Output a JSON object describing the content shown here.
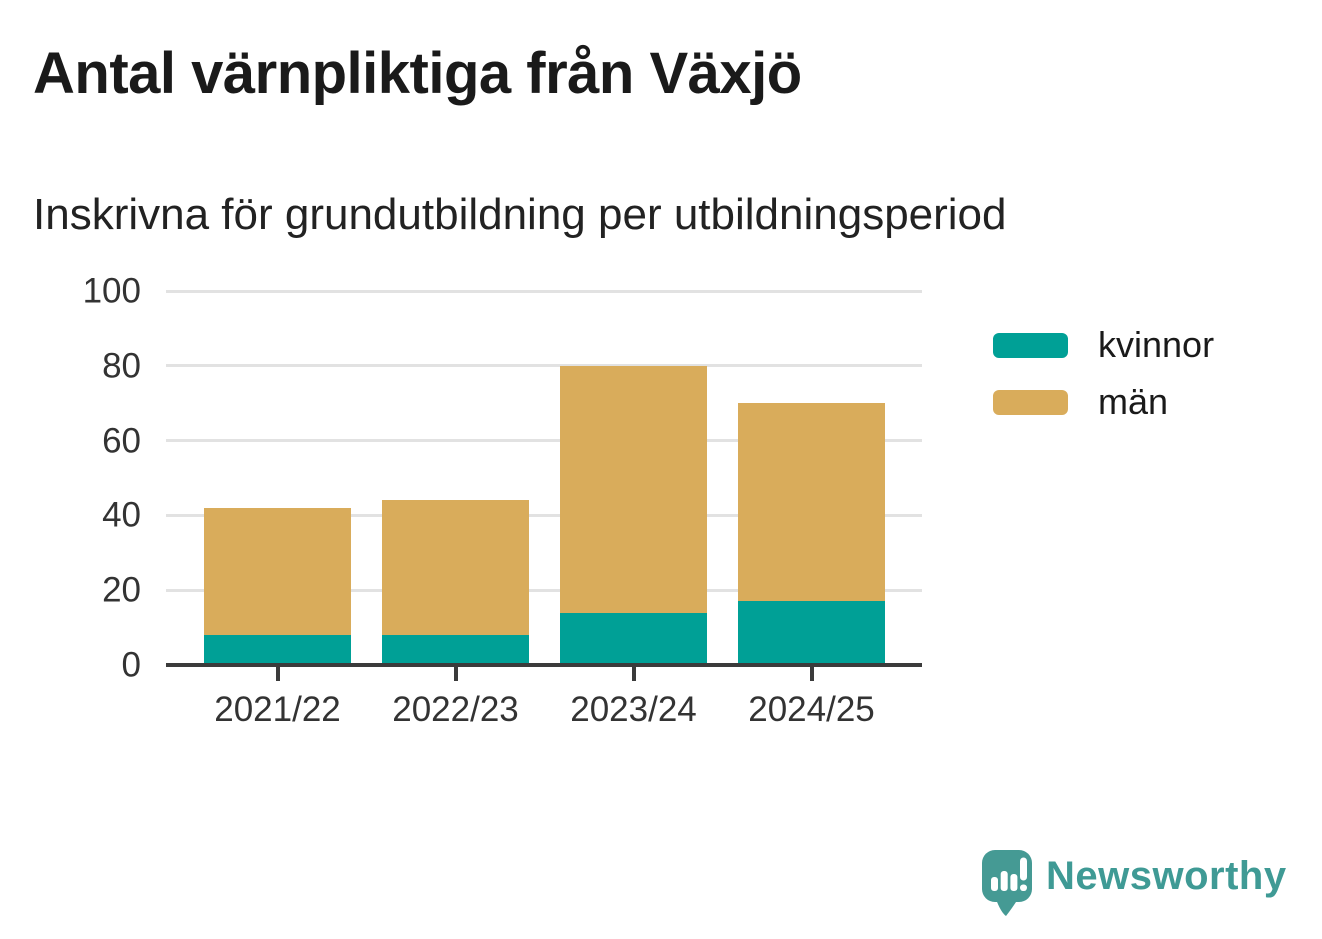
{
  "header": {
    "title": "Antal värnpliktiga från Växjö",
    "subtitle": "Inskrivna för grundutbildning per utbildningsperiod"
  },
  "chart_data": {
    "type": "bar",
    "stacked": true,
    "title": "Antal värnpliktiga från Växjö",
    "subtitle": "Inskrivna för grundutbildning per utbildningsperiod",
    "categories": [
      "2021/22",
      "2022/23",
      "2023/24",
      "2024/25"
    ],
    "series": [
      {
        "name": "kvinnor",
        "color": "#00a096",
        "values": [
          8,
          8,
          14,
          17
        ]
      },
      {
        "name": "män",
        "color": "#d9ac5b",
        "values": [
          34,
          36,
          66,
          53
        ]
      }
    ],
    "stack_totals": [
      42,
      44,
      80,
      70
    ],
    "xlabel": "",
    "ylabel": "",
    "ylim": [
      0,
      100
    ],
    "yticks": [
      0,
      20,
      40,
      60,
      80,
      100
    ],
    "grid": "horizontal gridlines only",
    "legend_position": "right"
  },
  "footer": {
    "brand": "Newsworthy"
  },
  "colors": {
    "background": "#ffffff",
    "gridline": "#e2e2e2",
    "axis": "#3b3b3b",
    "title_text": "#1a1a1a",
    "tick_text": "#333333",
    "brand_teal": "#3f9a95",
    "logo_teal": "#459a94"
  }
}
